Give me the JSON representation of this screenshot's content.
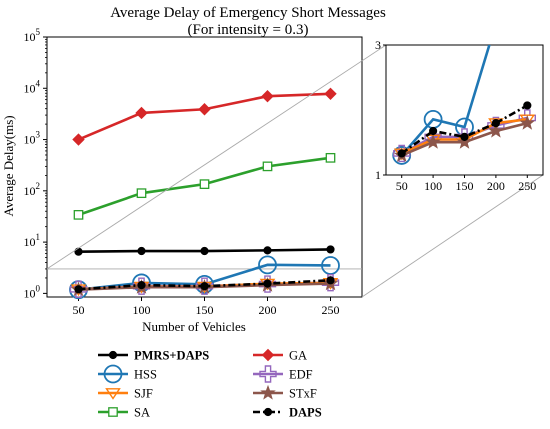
{
  "chart_data": {
    "type": "line",
    "title": "Average Delay of Emergency Short Messages",
    "subtitle": "(For intensity = 0.3)",
    "xlabel": "Number of Vehicles",
    "ylabel": "Average Delay(ms)",
    "yscale": "log",
    "xlim": [
      25,
      275
    ],
    "ylim": [
      0.85,
      100000
    ],
    "x": [
      50,
      100,
      150,
      200,
      250
    ],
    "x_ticks": [
      "50",
      "100",
      "150",
      "200",
      "250"
    ],
    "y_ticks": [
      {
        "base": "10",
        "exp": "0",
        "value": 1
      },
      {
        "base": "10",
        "exp": "1",
        "value": 10
      },
      {
        "base": "10",
        "exp": "2",
        "value": 100
      },
      {
        "base": "10",
        "exp": "3",
        "value": 1000
      },
      {
        "base": "10",
        "exp": "4",
        "value": 10000
      },
      {
        "base": "10",
        "exp": "5",
        "value": 100000
      }
    ],
    "grid": false,
    "legend_position": "below",
    "series": [
      {
        "name": "PMRS+DAPS",
        "color": "#000000",
        "marker": "circle",
        "dash": "solid",
        "bold": true,
        "values": [
          6.5,
          6.7,
          6.7,
          6.9,
          7.2
        ]
      },
      {
        "name": "GA",
        "color": "#d62728",
        "marker": "diamond",
        "dash": "solid",
        "bold": false,
        "values": [
          1000,
          3300,
          3900,
          7000,
          7800
        ]
      },
      {
        "name": "HSS",
        "color": "#1f77b4",
        "marker": "open-circle-large",
        "dash": "solid",
        "bold": false,
        "values": [
          1.18,
          1.6,
          1.5,
          3.6,
          3.5
        ]
      },
      {
        "name": "EDF",
        "color": "#9467bd",
        "marker": "open-plus",
        "dash": "solid",
        "bold": false,
        "values": [
          1.2,
          1.38,
          1.38,
          1.52,
          1.62
        ]
      },
      {
        "name": "SJF",
        "color": "#ff7f0e",
        "marker": "open-triangle-down",
        "dash": "solid",
        "bold": false,
        "values": [
          1.2,
          1.35,
          1.35,
          1.55,
          1.6
        ]
      },
      {
        "name": "STxF",
        "color": "#8c564b",
        "marker": "star",
        "dash": "solid",
        "bold": false,
        "values": [
          1.18,
          1.32,
          1.32,
          1.45,
          1.55
        ]
      },
      {
        "name": "SA",
        "color": "#2ca02c",
        "marker": "open-square",
        "dash": "solid",
        "bold": false,
        "values": [
          34,
          90,
          135,
          300,
          440
        ]
      },
      {
        "name": "DAPS",
        "color": "#000000",
        "marker": "circle",
        "dash": "dashdot",
        "bold": true,
        "values": [
          1.2,
          1.45,
          1.38,
          1.55,
          1.8
        ]
      }
    ],
    "inset": {
      "yscale": "log",
      "ylim": [
        1,
        3
      ],
      "y_ticks": [
        "1",
        "3"
      ],
      "x_ticks": [
        "50",
        "100",
        "150",
        "200",
        "250"
      ]
    }
  }
}
